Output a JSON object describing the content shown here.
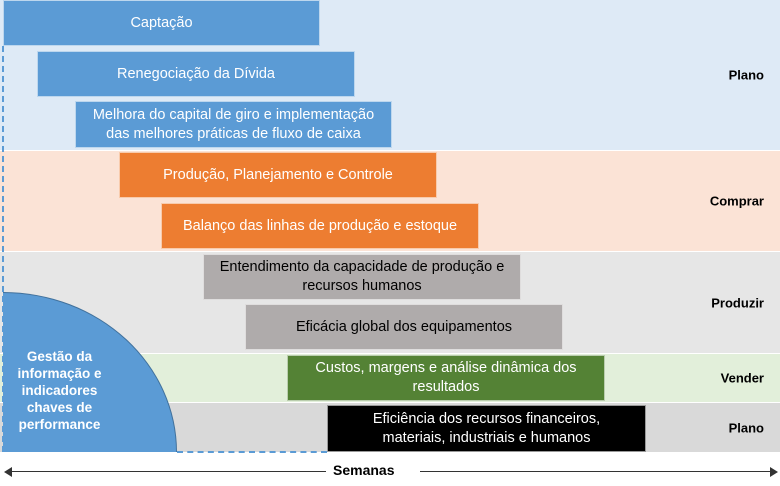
{
  "bands": [
    {
      "label": "Plano",
      "color": "#DEEAF6"
    },
    {
      "label": "Comprar",
      "color": "#FBE3D6"
    },
    {
      "label": "Produzir",
      "color": "#E6E6E6"
    },
    {
      "label": "Vender",
      "color": "#E2EFDA"
    },
    {
      "label": "Plano",
      "color": "#D9D9D9"
    }
  ],
  "bars": [
    {
      "label": "Captação",
      "color": "#5B9BD5"
    },
    {
      "label": "Renegociação da Dívida",
      "color": "#5B9BD5"
    },
    {
      "label": "Melhora do capital de giro e implementação das melhores práticas de fluxo de caixa",
      "color": "#5B9BD5"
    },
    {
      "label": "Produção, Planejamento e Controle",
      "color": "#ED7D31"
    },
    {
      "label": "Balanço das linhas de produção e estoque",
      "color": "#ED7D31"
    },
    {
      "label": "Entendimento da capacidade de produção e recursos humanos",
      "color": "#AFABAB"
    },
    {
      "label": "Eficácia global dos equipamentos",
      "color": "#AFABAB"
    },
    {
      "label": "Custos, margens e análise dinâmica dos resultados",
      "color": "#548235"
    },
    {
      "label": "Eficiência dos recursos financeiros, materiais, industriais e humanos",
      "color": "#000000"
    }
  ],
  "foundation": {
    "label": "Gestão da informação e indicadores chaves de performance",
    "color": "#5B9BD5"
  },
  "axis": {
    "label": "Semanas"
  }
}
